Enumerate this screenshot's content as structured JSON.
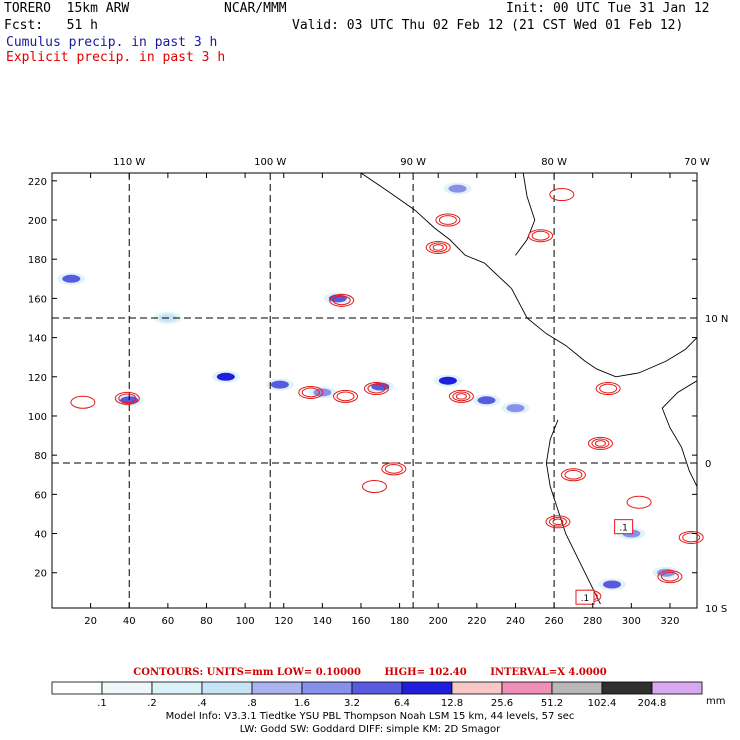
{
  "header": {
    "model": "TORERO  15km ARW",
    "center": "NCAR/MMM",
    "init": "Init: 00 UTC Tue 31 Jan 12",
    "fcst": "Fcst:   51 h",
    "valid": "Valid: 03 UTC Thu 02 Feb 12 (21 CST Wed 01 Feb 12)",
    "cumulus_label": "Cumulus precip. in past 3 h",
    "explicit_label": "Explicit precip. in past 3 h"
  },
  "colors": {
    "cumulus": "#1a1a9e",
    "explicit": "#e00000",
    "contour": "#e41a1a"
  },
  "chart_data": {
    "type": "heatmap",
    "title": "Cumulus precip. in past 3 h / Explicit precip. in past 3 h",
    "x_grid_ticks": [
      "20",
      "40",
      "60",
      "80",
      "100",
      "120",
      "140",
      "160",
      "180",
      "200",
      "220",
      "240",
      "260",
      "280",
      "300",
      "320"
    ],
    "y_grid_ticks": [
      "20",
      "40",
      "60",
      "80",
      "100",
      "120",
      "140",
      "160",
      "180",
      "200",
      "220"
    ],
    "xlim": [
      0,
      334
    ],
    "ylim": [
      2,
      224
    ],
    "longitude_labels": [
      "110 W",
      "100 W",
      "90 W",
      "80 W",
      "70 W"
    ],
    "longitude_grid_x": [
      40,
      113,
      187,
      260
    ],
    "latitude_labels": [
      "10 N",
      "0",
      "10 S"
    ],
    "latitude_grid_y": [
      150,
      76
    ],
    "cumulus_cells": [
      {
        "x": 10,
        "y": 170,
        "v": 6.4
      },
      {
        "x": 40,
        "y": 108,
        "v": 6.4
      },
      {
        "x": 90,
        "y": 120,
        "v": 12.8
      },
      {
        "x": 118,
        "y": 116,
        "v": 6.4
      },
      {
        "x": 140,
        "y": 112,
        "v": 3.2
      },
      {
        "x": 148,
        "y": 160,
        "v": 6.4
      },
      {
        "x": 170,
        "y": 115,
        "v": 6.4
      },
      {
        "x": 205,
        "y": 118,
        "v": 12.8
      },
      {
        "x": 225,
        "y": 108,
        "v": 6.4
      },
      {
        "x": 240,
        "y": 104,
        "v": 3.2
      },
      {
        "x": 210,
        "y": 216,
        "v": 3.2
      },
      {
        "x": 290,
        "y": 14,
        "v": 6.4
      },
      {
        "x": 318,
        "y": 20,
        "v": 3.2
      },
      {
        "x": 300,
        "y": 40,
        "v": 3.2
      },
      {
        "x": 60,
        "y": 150,
        "v": 1.6
      }
    ],
    "explicit_contours": [
      {
        "x": 39,
        "y": 109,
        "v": 4.1
      },
      {
        "x": 16,
        "y": 107,
        "v": 0.1
      },
      {
        "x": 150,
        "y": 159,
        "v": 4.1
      },
      {
        "x": 134,
        "y": 112,
        "v": 4.1
      },
      {
        "x": 152,
        "y": 110,
        "v": 4.1
      },
      {
        "x": 168,
        "y": 114,
        "v": 4.1
      },
      {
        "x": 212,
        "y": 110,
        "v": 8.1
      },
      {
        "x": 205,
        "y": 200,
        "v": 4.1
      },
      {
        "x": 200,
        "y": 186,
        "v": 8.1
      },
      {
        "x": 177,
        "y": 73,
        "v": 4.1
      },
      {
        "x": 167,
        "y": 64,
        "v": 0.1
      },
      {
        "x": 253,
        "y": 192,
        "v": 4.1
      },
      {
        "x": 264,
        "y": 213,
        "v": 0.1
      },
      {
        "x": 288,
        "y": 114,
        "v": 4.1
      },
      {
        "x": 284,
        "y": 86,
        "v": 8.1
      },
      {
        "x": 270,
        "y": 70,
        "v": 4.1
      },
      {
        "x": 262,
        "y": 46,
        "v": 8.1
      },
      {
        "x": 304,
        "y": 56,
        "v": 0.1
      },
      {
        "x": 320,
        "y": 18,
        "v": 4.1
      },
      {
        "x": 278,
        "y": 8,
        "v": 8.1
      },
      {
        "x": 331,
        "y": 38,
        "v": 4.1
      }
    ],
    "box_labels": [
      {
        "text": ".1",
        "x": 296,
        "y": 43
      },
      {
        "text": ".1",
        "x": 276,
        "y": 7
      }
    ]
  },
  "contours_line": {
    "units": "CONTOURS:  UNITS=mm  LOW= 0.10000",
    "high": "HIGH=  102.40",
    "interval": "INTERVAL=X  4.0000"
  },
  "colorbar": {
    "labels": [
      ".1",
      ".2",
      ".4",
      ".8",
      "1.6",
      "3.2",
      "6.4",
      "12.8",
      "25.6",
      "51.2",
      "102.4",
      "204.8"
    ],
    "colors": [
      "#ffffff",
      "#eef8fb",
      "#dbf2f8",
      "#c6e4f6",
      "#aab4f0",
      "#8890ea",
      "#5a5ae0",
      "#1e1edc",
      "#f8c8c8",
      "#f090b8",
      "#b8b8b8",
      "#303030",
      "#d8a8f0"
    ],
    "units": "mm"
  },
  "footer": {
    "line1": "Model Info: V3.3.1    Tiedtke YSU PBL  Thompson     Noah LSM  15 km,   44 levels,   57 sec",
    "line2": "LW: Godd SW: Goddard DIFF: simple KM: 2D Smagor"
  }
}
